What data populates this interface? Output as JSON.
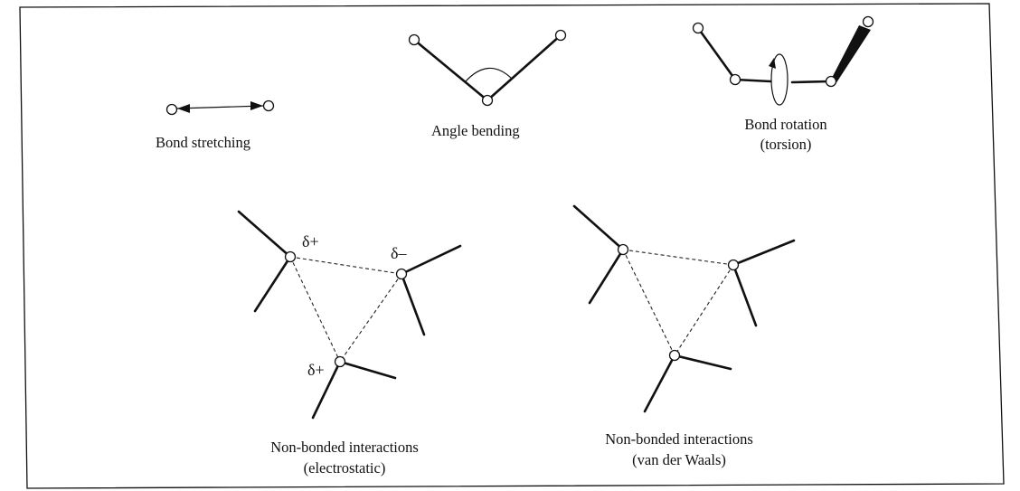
{
  "labels": {
    "bond_stretching": "Bond stretching",
    "angle_bending": "Angle bending",
    "bond_rotation": "Bond rotation",
    "torsion": "(torsion)",
    "nonbonded_electrostatic_line1": "Non-bonded interactions",
    "nonbonded_electrostatic_line2": "(electrostatic)",
    "nonbonded_vdw_line1": "Non-bonded interactions",
    "nonbonded_vdw_line2": "(van der Waals)"
  },
  "charges": {
    "top_left": "δ+",
    "top_right": "δ–",
    "bottom": "δ+"
  }
}
